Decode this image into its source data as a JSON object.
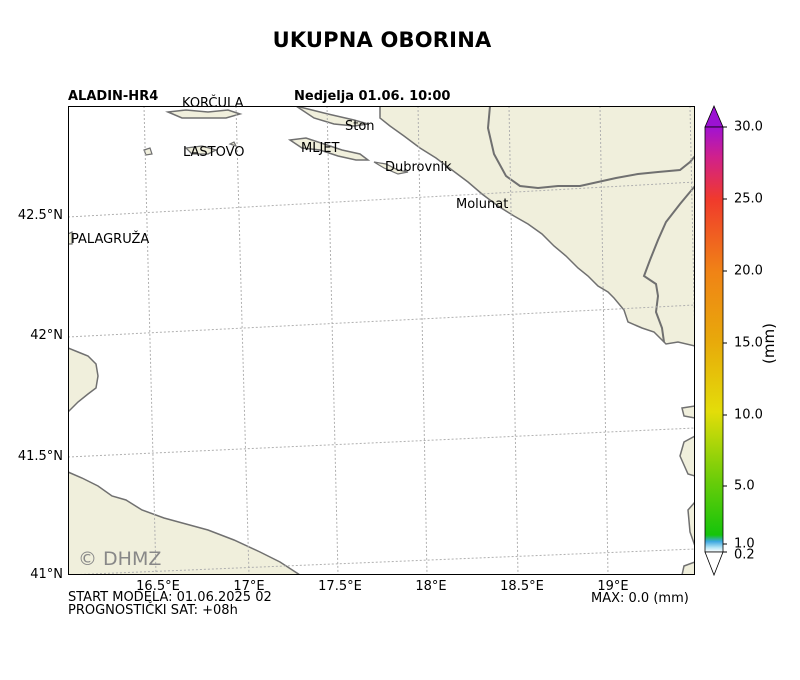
{
  "title": "UKUPNA OBORINA",
  "model": "ALADIN-HR4",
  "valid_time": "Nedjelja 01.06. 10:00",
  "footer": {
    "start": "START MODELA: 01.06.2025 02",
    "forecast_hour": "PROGNOSTIČKI SAT: +08h",
    "max": "MAX: 0.0 (mm)"
  },
  "copyright": "© DHMZ",
  "lat_labels": [
    "42.5°N",
    "42°N",
    "41.5°N",
    "41°N"
  ],
  "lon_labels": [
    "16.5°E",
    "17°E",
    "17.5°E",
    "18°E",
    "18.5°E",
    "19°E"
  ],
  "places": [
    {
      "id": "korcula",
      "name": "KORČULA"
    },
    {
      "id": "ston",
      "name": "Ston"
    },
    {
      "id": "lastovo",
      "name": "LASTOVO"
    },
    {
      "id": "mljet",
      "name": "MLJET"
    },
    {
      "id": "dubrovnik",
      "name": "Dubrovnik"
    },
    {
      "id": "molunat",
      "name": "Molunat"
    },
    {
      "id": "palagruza",
      "name": "PALAGRUŽA"
    }
  ],
  "colorbar": {
    "unit": "(mm)",
    "ticks": [
      "30.0",
      "25.0",
      "20.0",
      "15.0",
      "10.0",
      "5.0",
      "1.0",
      "0.2"
    ]
  },
  "colors": {
    "land": "#f0efdc",
    "coast": "#707070",
    "grid": "#b0b0b0"
  }
}
